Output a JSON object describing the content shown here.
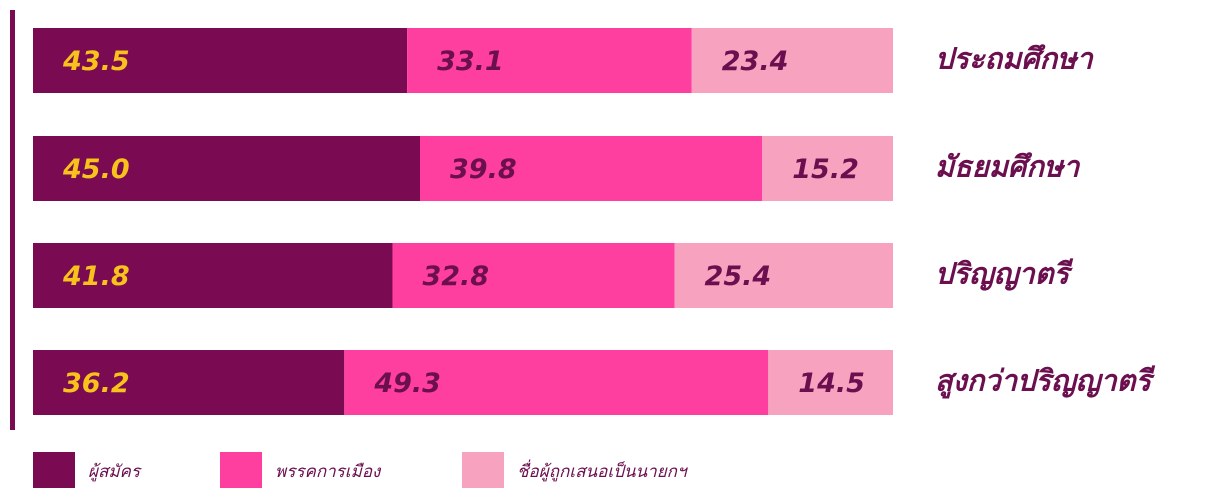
{
  "chart_data": {
    "type": "bar",
    "orientation": "horizontal",
    "stacked": true,
    "categories": [
      "ประถมศึกษา",
      "มัธยมศึกษา",
      "ปริญญาตรี",
      "สูงกว่าปริญญาตรี"
    ],
    "xlim": [
      0,
      100
    ],
    "series": [
      {
        "name": "ผู้สมัคร",
        "color": "#7a0a52",
        "label_color": "#f7c21b",
        "values": [
          43.5,
          45.0,
          41.8,
          36.2
        ],
        "value_labels": [
          "43.5",
          "45.0",
          "41.8",
          "36.2"
        ]
      },
      {
        "name": "พรรคการเมือง",
        "color": "#ff3fa0",
        "label_color": "#6b0f4f",
        "values": [
          33.1,
          39.8,
          32.8,
          49.3
        ],
        "value_labels": [
          "33.1",
          "39.8",
          "32.8",
          "49.3"
        ]
      },
      {
        "name": "ชื่อผู้ถูกเสนอเป็นนายกฯ",
        "color": "#f7a3c0",
        "label_color": "#6b0f4f",
        "values": [
          23.4,
          15.2,
          25.4,
          14.5
        ],
        "value_labels": [
          "23.4",
          "15.2",
          "25.4",
          "14.5"
        ]
      }
    ],
    "legend": "bottom"
  }
}
